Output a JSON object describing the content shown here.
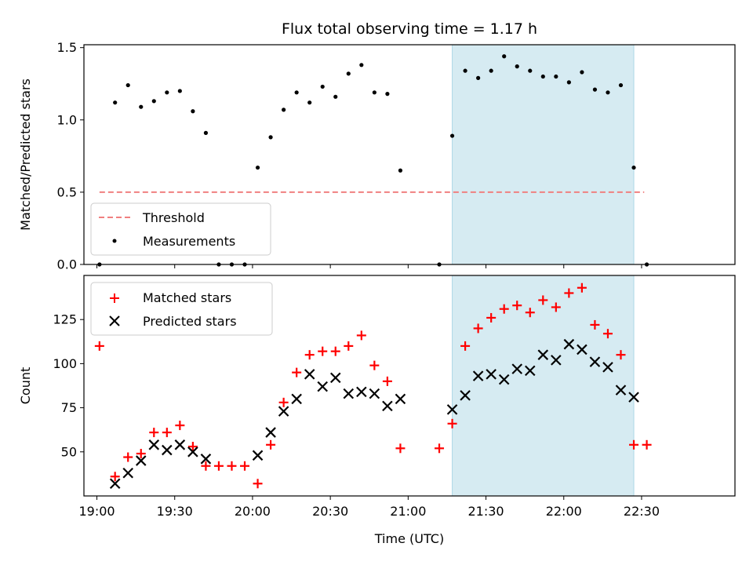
{
  "title": "Flux total observing time = 1.17 h",
  "xlabel": "Time (UTC)",
  "x_ticks": [
    "19:00",
    "19:30",
    "20:00",
    "20:30",
    "21:00",
    "21:30",
    "22:00",
    "22:30"
  ],
  "colors": {
    "threshold": "#f08080",
    "measurement": "#000000",
    "matched": "#ff0000",
    "predicted": "#000000",
    "shade": "#add8e6"
  },
  "chart_data": [
    {
      "type": "scatter",
      "ylabel": "Matched/Predicted stars",
      "xlim": [
        "18:55",
        "23:06"
      ],
      "ylim": [
        0,
        1.52
      ],
      "y_ticks": [
        "0.0",
        "0.5",
        "1.0",
        "1.5"
      ],
      "y_tick_values": [
        0,
        0.5,
        1.0,
        1.5
      ],
      "shaded_region": [
        "21:17",
        "22:27"
      ],
      "legend_position": "lower-left",
      "threshold": {
        "name": "Threshold",
        "value": 0.5,
        "x_range": [
          "19:01",
          "22:31"
        ]
      },
      "series": [
        {
          "name": "Measurements",
          "x": [
            "19:01",
            "19:07",
            "19:12",
            "19:17",
            "19:22",
            "19:27",
            "19:32",
            "19:37",
            "19:42",
            "19:47",
            "19:52",
            "19:57",
            "20:02",
            "20:07",
            "20:12",
            "20:17",
            "20:22",
            "20:27",
            "20:32",
            "20:37",
            "20:42",
            "20:47",
            "20:52",
            "20:57",
            "21:12",
            "21:17",
            "21:22",
            "21:27",
            "21:32",
            "21:37",
            "21:42",
            "21:47",
            "21:52",
            "21:57",
            "22:02",
            "22:07",
            "22:12",
            "22:17",
            "22:22",
            "22:27",
            "22:32"
          ],
          "y": [
            0,
            1.12,
            1.24,
            1.09,
            1.13,
            1.19,
            1.2,
            1.06,
            0.91,
            0,
            0,
            0,
            0.67,
            0.88,
            1.07,
            1.19,
            1.12,
            1.23,
            1.16,
            1.32,
            1.38,
            1.19,
            1.18,
            0.65,
            0,
            0.89,
            1.34,
            1.29,
            1.34,
            1.44,
            1.37,
            1.34,
            1.3,
            1.3,
            1.26,
            1.33,
            1.21,
            1.19,
            1.24,
            0.67,
            0
          ]
        }
      ]
    },
    {
      "type": "scatter",
      "ylabel": "Count",
      "xlim": [
        "18:55",
        "23:06"
      ],
      "ylim": [
        25,
        150
      ],
      "y_ticks": [
        "50",
        "75",
        "100",
        "125"
      ],
      "y_tick_values": [
        50,
        75,
        100,
        125
      ],
      "shaded_region": [
        "21:17",
        "22:27"
      ],
      "legend_position": "upper-left",
      "series": [
        {
          "name": "Matched stars",
          "marker": "plus",
          "x": [
            "19:01",
            "19:07",
            "19:12",
            "19:17",
            "19:22",
            "19:27",
            "19:32",
            "19:37",
            "19:42",
            "19:47",
            "19:52",
            "19:57",
            "20:02",
            "20:07",
            "20:12",
            "20:17",
            "20:22",
            "20:27",
            "20:32",
            "20:37",
            "20:42",
            "20:47",
            "20:52",
            "20:57",
            "21:12",
            "21:17",
            "21:22",
            "21:27",
            "21:32",
            "21:37",
            "21:42",
            "21:47",
            "21:52",
            "21:57",
            "22:02",
            "22:07",
            "22:12",
            "22:17",
            "22:22",
            "22:27",
            "22:32"
          ],
          "y": [
            110,
            36,
            47,
            49,
            61,
            61,
            65,
            53,
            42,
            42,
            42,
            42,
            32,
            54,
            78,
            95,
            105,
            107,
            107,
            110,
            116,
            99,
            90,
            52,
            52,
            66,
            110,
            120,
            126,
            131,
            133,
            129,
            136,
            132,
            140,
            143,
            122,
            117,
            105,
            54,
            54
          ]
        },
        {
          "name": "Predicted stars",
          "marker": "x",
          "x": [
            "19:07",
            "19:12",
            "19:17",
            "19:22",
            "19:27",
            "19:32",
            "19:37",
            "19:42",
            "20:02",
            "20:07",
            "20:12",
            "20:17",
            "20:22",
            "20:27",
            "20:32",
            "20:37",
            "20:42",
            "20:47",
            "20:52",
            "20:57",
            "21:17",
            "21:22",
            "21:27",
            "21:32",
            "21:37",
            "21:42",
            "21:47",
            "21:52",
            "21:57",
            "22:02",
            "22:07",
            "22:12",
            "22:17",
            "22:22",
            "22:27"
          ],
          "y": [
            32,
            38,
            45,
            54,
            51,
            54,
            50,
            46,
            48,
            61,
            73,
            80,
            94,
            87,
            92,
            83,
            84,
            83,
            76,
            80,
            74,
            82,
            93,
            94,
            91,
            97,
            96,
            105,
            102,
            111,
            108,
            101,
            98,
            85,
            81
          ]
        }
      ]
    }
  ]
}
